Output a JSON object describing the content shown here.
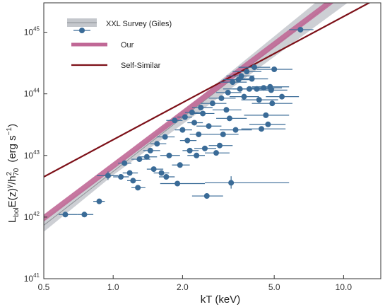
{
  "chart_data": {
    "type": "scatter",
    "title": "",
    "xlabel": "kT   (keV)",
    "ylabel": {
      "main": "L",
      "bol_sub": "bol",
      "mid": "E(z)",
      "gamma_sup": "γ",
      "slash": "/h",
      "h_sup": "2",
      "h_sub": "70",
      "units": "(erg s",
      "units_sup": "−1",
      "units_close": ")"
    },
    "x_scale": "log",
    "y_scale": "log",
    "xlim": [
      0.5,
      14.5
    ],
    "ylim": [
      1e+41,
      3e+45
    ],
    "xticks": [
      {
        "value": 0.5,
        "label": "0.5"
      },
      {
        "value": 1.0,
        "label": "1.0"
      },
      {
        "value": 2.0,
        "label": "2.0"
      },
      {
        "value": 5.0,
        "label": "5.0"
      },
      {
        "value": 10.0,
        "label": "10.0"
      }
    ],
    "yticks": [
      {
        "value": 1e+41,
        "base": "10",
        "exp": "41"
      },
      {
        "value": 1e+42,
        "base": "10",
        "exp": "42"
      },
      {
        "value": 1e+43,
        "base": "10",
        "exp": "43"
      },
      {
        "value": 1e+44,
        "base": "10",
        "exp": "44"
      },
      {
        "value": 1e+45,
        "base": "10",
        "exp": "45"
      }
    ],
    "legend": {
      "placement": "top-left",
      "entries": [
        {
          "key": "xxl",
          "label": "XXL Survey (Giles)"
        },
        {
          "key": "our",
          "label": "Our"
        },
        {
          "key": "self",
          "label": "Self-Similar"
        }
      ]
    },
    "colors": {
      "data": "#3a6b97",
      "xxl_band": "#c4c7cc",
      "xxl_line": "#8d9196",
      "our": "#c06896",
      "self_similar": "#7d1018"
    },
    "relations": {
      "self_similar": {
        "pivot_T": 1.0,
        "pivot_L": 1.8e+43,
        "slope": 2.0
      },
      "xxl": {
        "pivot_T": 1.0,
        "pivot_L": 5.5e+42,
        "slope": 2.9,
        "slope_range": [
          2.75,
          3.05
        ]
      },
      "our": {
        "pivot_T": 1.0,
        "pivot_L": 6.8e+42,
        "slope": 2.82,
        "band_factor": 1.14
      }
    },
    "points": [
      {
        "T": 0.62,
        "L": 1.1e+42,
        "xerr": [
          0.58,
          0.7
        ]
      },
      {
        "T": 0.75,
        "L": 1.1e+42,
        "xerr": [
          0.7,
          0.82
        ]
      },
      {
        "T": 0.87,
        "L": 1.8e+42,
        "xerr": [
          0.82,
          0.92
        ]
      },
      {
        "T": 0.95,
        "L": 4.7e+42,
        "xerr": [
          0.85,
          1.05
        ],
        "yerr": [
          4e+42,
          5.5e+42
        ]
      },
      {
        "T": 1.08,
        "L": 4.5e+42,
        "xerr": [
          1.0,
          1.17
        ]
      },
      {
        "T": 1.12,
        "L": 7.5e+42,
        "xerr": [
          1.05,
          1.2
        ]
      },
      {
        "T": 1.18,
        "L": 5.2e+42,
        "xerr": [
          1.1,
          1.28
        ]
      },
      {
        "T": 1.22,
        "L": 3.9e+42,
        "xerr": [
          1.15,
          1.32
        ]
      },
      {
        "T": 1.28,
        "L": 3e+42,
        "xerr": [
          1.2,
          1.38
        ]
      },
      {
        "T": 1.3,
        "L": 8.7e+42,
        "xerr": [
          1.2,
          1.45
        ]
      },
      {
        "T": 1.4,
        "L": 9.5e+42,
        "xerr": [
          1.3,
          1.55
        ]
      },
      {
        "T": 1.45,
        "L": 1.2e+43,
        "xerr": [
          1.35,
          1.6
        ]
      },
      {
        "T": 1.5,
        "L": 6e+42,
        "xerr": [
          1.4,
          1.65
        ]
      },
      {
        "T": 1.55,
        "L": 1.55e+43,
        "xerr": [
          1.45,
          1.7
        ]
      },
      {
        "T": 1.62,
        "L": 5.2e+42,
        "xerr": [
          1.5,
          1.75
        ]
      },
      {
        "T": 1.68,
        "L": 2e+43,
        "xerr": [
          1.55,
          1.85
        ]
      },
      {
        "T": 1.7,
        "L": 4.5e+42,
        "xerr": [
          1.58,
          1.85
        ]
      },
      {
        "T": 1.75,
        "L": 1e+43,
        "xerr": [
          1.6,
          1.95
        ]
      },
      {
        "T": 1.85,
        "L": 3.7e+43,
        "xerr": [
          1.7,
          2.0
        ]
      },
      {
        "T": 1.9,
        "L": 3.5e+42,
        "xerr": [
          1.6,
          2.5
        ]
      },
      {
        "T": 1.95,
        "L": 7e+42,
        "xerr": [
          1.8,
          2.15
        ]
      },
      {
        "T": 2.0,
        "L": 2.6e+43,
        "xerr": [
          1.85,
          2.2
        ]
      },
      {
        "T": 2.05,
        "L": 4.2e+43,
        "xerr": [
          1.9,
          2.2
        ]
      },
      {
        "T": 2.1,
        "L": 1.75e+43,
        "xerr": [
          1.95,
          2.3
        ]
      },
      {
        "T": 2.15,
        "L": 1.2e+43,
        "xerr": [
          2.0,
          2.35
        ]
      },
      {
        "T": 2.2,
        "L": 5e+43,
        "xerr": [
          2.05,
          2.4
        ]
      },
      {
        "T": 2.25,
        "L": 3.4e+43,
        "xerr": [
          2.1,
          2.45
        ]
      },
      {
        "T": 2.3,
        "L": 1e+43,
        "xerr": [
          2.1,
          2.5
        ]
      },
      {
        "T": 2.35,
        "L": 2.2e+43,
        "xerr": [
          2.15,
          2.6
        ]
      },
      {
        "T": 2.4,
        "L": 6e+43,
        "xerr": [
          2.2,
          2.7
        ]
      },
      {
        "T": 2.45,
        "L": 4.8e+43,
        "xerr": [
          2.2,
          2.75
        ]
      },
      {
        "T": 2.5,
        "L": 1.3e+43,
        "xerr": [
          2.25,
          2.8
        ]
      },
      {
        "T": 2.55,
        "L": 2.2e+42,
        "xerr": [
          2.2,
          3.0
        ]
      },
      {
        "T": 2.6,
        "L": 3e+43,
        "xerr": [
          2.3,
          2.95
        ]
      },
      {
        "T": 2.7,
        "L": 7e+43,
        "xerr": [
          2.4,
          3.1
        ]
      },
      {
        "T": 2.8,
        "L": 1.1e+43,
        "xerr": [
          2.5,
          3.2
        ]
      },
      {
        "T": 2.9,
        "L": 1.45e+43,
        "xerr": [
          2.6,
          3.3
        ]
      },
      {
        "T": 2.95,
        "L": 8.5e+43,
        "xerr": [
          2.6,
          3.4
        ]
      },
      {
        "T": 3.0,
        "L": 2.2e+43,
        "xerr": [
          2.6,
          3.5
        ]
      },
      {
        "T": 3.1,
        "L": 5.5e+43,
        "xerr": [
          2.7,
          3.6
        ]
      },
      {
        "T": 3.15,
        "L": 1.05e+44,
        "xerr": [
          2.8,
          3.6
        ]
      },
      {
        "T": 3.2,
        "L": 4e+43,
        "xerr": [
          2.8,
          3.8
        ]
      },
      {
        "T": 3.25,
        "L": 3.6e+42,
        "xerr": [
          2.5,
          5.8
        ],
        "yerr": [
          2.9e+42,
          4.6e+42
        ]
      },
      {
        "T": 3.3,
        "L": 1.55e+44,
        "xerr": [
          2.9,
          3.8
        ]
      },
      {
        "T": 3.4,
        "L": 2.6e+43,
        "xerr": [
          2.9,
          4.0
        ]
      },
      {
        "T": 3.5,
        "L": 1.7e+44,
        "xerr": [
          3.0,
          4.0
        ]
      },
      {
        "T": 3.55,
        "L": 1.2e+44,
        "xerr": [
          3.0,
          4.2
        ]
      },
      {
        "T": 3.6,
        "L": 1.95e+44,
        "xerr": [
          3.1,
          4.1
        ]
      },
      {
        "T": 3.7,
        "L": 9e+43,
        "xerr": [
          3.2,
          4.3
        ]
      },
      {
        "T": 3.8,
        "L": 2.3e+44,
        "xerr": [
          3.3,
          4.4
        ]
      },
      {
        "T": 3.9,
        "L": 1.2e+44,
        "xerr": [
          3.3,
          4.6
        ]
      },
      {
        "T": 4.0,
        "L": 1.75e+44,
        "xerr": [
          3.4,
          4.7
        ]
      },
      {
        "T": 4.1,
        "L": 2.7e+44,
        "xerr": [
          3.5,
          4.8
        ]
      },
      {
        "T": 4.2,
        "L": 1.2e+44,
        "xerr": [
          3.5,
          5.0
        ]
      },
      {
        "T": 4.3,
        "L": 8e+43,
        "xerr": [
          3.6,
          5.2
        ]
      },
      {
        "T": 4.4,
        "L": 2.7e+43,
        "xerr": [
          3.6,
          5.6
        ]
      },
      {
        "T": 4.5,
        "L": 1.25e+44,
        "xerr": [
          3.8,
          5.4
        ]
      },
      {
        "T": 4.6,
        "L": 4.5e+43,
        "xerr": [
          3.7,
          5.8
        ]
      },
      {
        "T": 4.7,
        "L": 3.2e+43,
        "xerr": [
          3.9,
          5.6
        ]
      },
      {
        "T": 4.8,
        "L": 1.3e+44,
        "xerr": [
          4.0,
          5.8
        ]
      },
      {
        "T": 4.85,
        "L": 1.15e+44,
        "xerr": [
          4.1,
          5.7
        ]
      },
      {
        "T": 4.9,
        "L": 7e+43,
        "xerr": [
          4.0,
          6.0
        ]
      },
      {
        "T": 5.0,
        "L": 2.5e+44,
        "xerr": [
          4.2,
          6.0
        ]
      },
      {
        "T": 5.4,
        "L": 9e+43,
        "xerr": [
          4.6,
          6.4
        ]
      },
      {
        "T": 6.5,
        "L": 1.1e+45,
        "xerr": [
          5.8,
          7.4
        ]
      }
    ]
  }
}
